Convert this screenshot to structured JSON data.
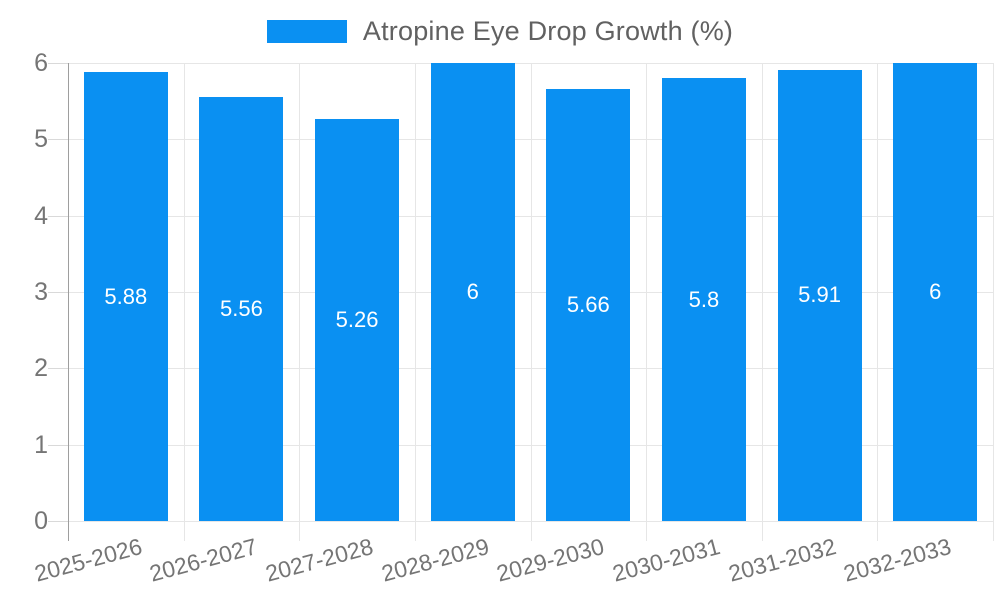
{
  "chart_data": {
    "type": "bar",
    "title": "",
    "xlabel": "",
    "ylabel": "",
    "categories": [
      "2025-2026",
      "2026-2027",
      "2027-2028",
      "2028-2029",
      "2029-2030",
      "2030-2031",
      "2031-2032",
      "2032-2033"
    ],
    "series": [
      {
        "name": "Atropine Eye Drop Growth (%)",
        "values": [
          5.88,
          5.56,
          5.26,
          6,
          5.66,
          5.8,
          5.91,
          6
        ],
        "value_labels": [
          "5.88",
          "5.56",
          "5.26",
          "6",
          "5.66",
          "5.8",
          "5.91",
          "6"
        ]
      }
    ],
    "ylim": [
      0,
      6
    ],
    "yticks": [
      0,
      1,
      2,
      3,
      4,
      5,
      6
    ],
    "ytick_labels": [
      "0",
      "1",
      "2",
      "3",
      "4",
      "5",
      "6"
    ],
    "grid": true,
    "legend_position": "top",
    "x_label_rotation_deg": -15,
    "colors": {
      "bar": "#0a90f2",
      "value_label": "#ffffff",
      "axis_text": "#757575",
      "legend_text": "#616161",
      "gridline": "#e6e6e6",
      "tick": "#d9d9d9",
      "axis_line": "#9e9e9e",
      "background": "#ffffff"
    }
  }
}
